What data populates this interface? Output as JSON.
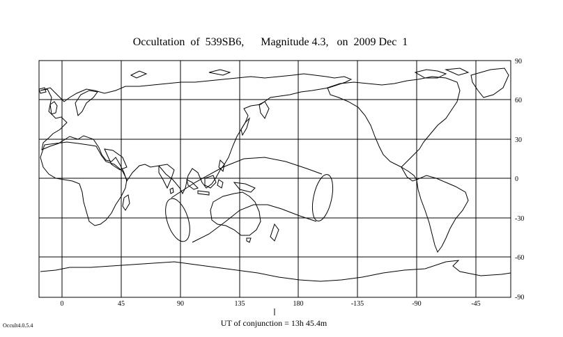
{
  "title": "Occultation  of  539SB6,      Magnitude 4.3,   on  2009 Dec  1",
  "x_ticks": [
    "0",
    "45",
    "90",
    "135",
    "180",
    "-135",
    "-90",
    "-45"
  ],
  "y_ticks": [
    "90",
    "60",
    "30",
    "0",
    "-30",
    "-60",
    "-90"
  ],
  "conjunction_label": "UT of conjunction = 13h 45.4m",
  "version": "Occult4.0.5.4",
  "colors": {
    "lines": "#000000",
    "background": "#ffffff"
  }
}
